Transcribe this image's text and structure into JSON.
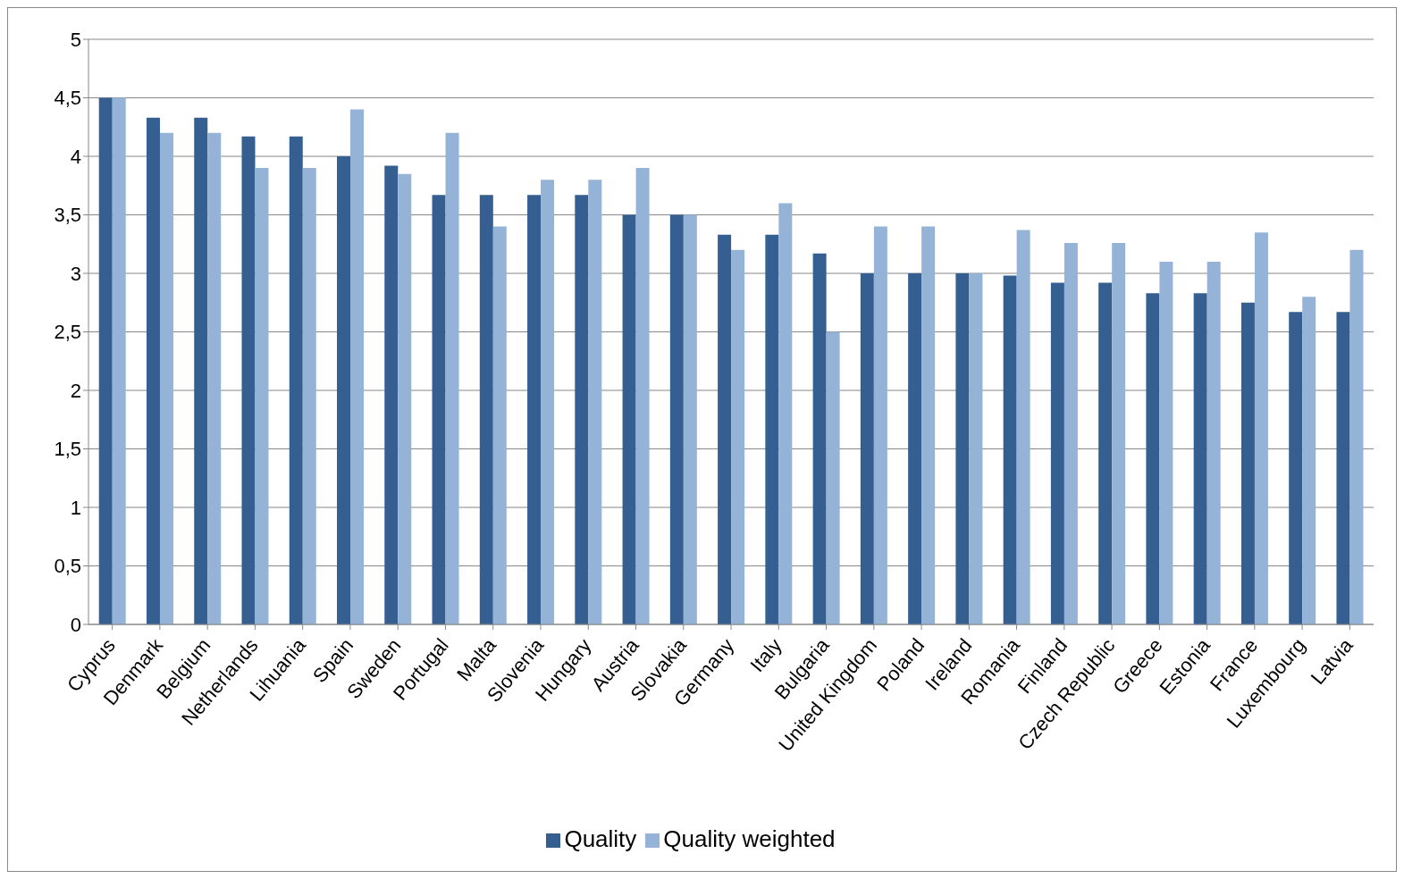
{
  "chart_data": {
    "type": "bar",
    "categories": [
      "Cyprus",
      "Denmark",
      "Belgium",
      "Netherlands",
      "Lihuania",
      "Spain",
      "Sweden",
      "Portugal",
      "Malta",
      "Slovenia",
      "Hungary",
      "Austria",
      "Slovakia",
      "Germany",
      "Italy",
      "Bulgaria",
      "United Kingdom",
      "Poland",
      "Ireland",
      "Romania",
      "Finland",
      "Czech Republic",
      "Greece",
      "Estonia",
      "France",
      "Luxembourg",
      "Latvia"
    ],
    "series": [
      {
        "name": "Quality",
        "color": "#355f91",
        "values": [
          4.5,
          4.33,
          4.33,
          4.17,
          4.17,
          4.0,
          3.92,
          3.67,
          3.67,
          3.67,
          3.67,
          3.5,
          3.5,
          3.33,
          3.33,
          3.17,
          3.0,
          3.0,
          3.0,
          2.98,
          2.92,
          2.92,
          2.83,
          2.83,
          2.75,
          2.67,
          2.67
        ]
      },
      {
        "name": "Quality weighted",
        "color": "#95b3d7",
        "values": [
          4.5,
          4.2,
          4.2,
          3.9,
          3.9,
          4.4,
          3.85,
          4.2,
          3.4,
          3.8,
          3.8,
          3.9,
          3.5,
          3.2,
          3.6,
          2.5,
          3.4,
          3.4,
          3.0,
          3.37,
          3.26,
          3.26,
          3.1,
          3.1,
          3.35,
          2.8,
          3.2
        ]
      }
    ],
    "ylim": [
      0,
      5
    ],
    "yticks": [
      0,
      {
        "value": 0.5,
        "label": "0,5"
      },
      1,
      {
        "value": 1.5,
        "label": "1,5"
      },
      2,
      {
        "value": 2.5,
        "label": "2,5"
      },
      3,
      {
        "value": 3.5,
        "label": "3,5"
      },
      4,
      {
        "value": 4.5,
        "label": "4,5"
      },
      5
    ],
    "grid": "y",
    "legend": "bottom"
  }
}
